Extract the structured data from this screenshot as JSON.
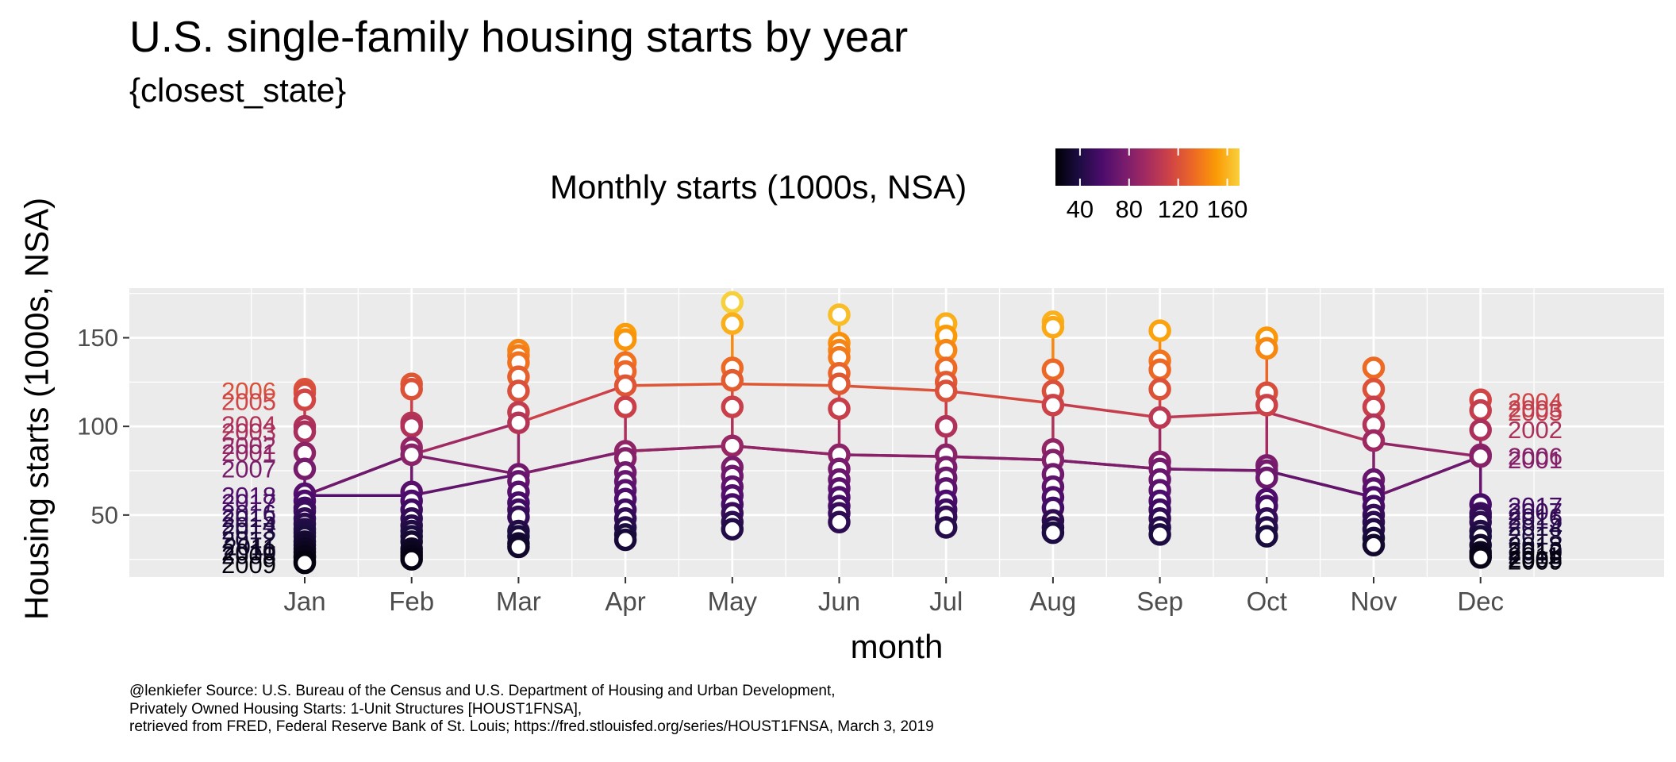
{
  "title": "U.S. single-family housing starts by year",
  "subtitle": "{closest_state}",
  "caption": [
    "@lenkiefer Source: U.S. Bureau of the Census and U.S. Department of Housing and Urban Development,",
    "Privately Owned Housing Starts: 1-Unit Structures [HOUST1FNSA],",
    "retrieved from FRED, Federal Reserve Bank of St. Louis; https://fred.stlouisfed.org/series/HOUST1FNSA, March 3, 2019"
  ],
  "chart_data": {
    "type": "scatter",
    "xlabel": "month",
    "ylabel": "Housing starts (1000s, NSA)",
    "categories": [
      "Jan",
      "Feb",
      "Mar",
      "Apr",
      "May",
      "Jun",
      "Jul",
      "Aug",
      "Sep",
      "Oct",
      "Nov",
      "Dec"
    ],
    "y_ticks": [
      50,
      100,
      150
    ],
    "ylim": [
      15,
      178
    ],
    "grid": true,
    "legend": {
      "title": "Monthly starts (1000s, NSA)",
      "ticks": [
        40,
        80,
        120,
        160
      ],
      "range": [
        20,
        170
      ],
      "placement": "top",
      "colors": [
        "#000004",
        "#1b0c41",
        "#4a0c6b",
        "#781c6d",
        "#a52c60",
        "#cf4446",
        "#ed6925",
        "#fb9b06",
        "#f7d13d"
      ]
    },
    "points_by_month": [
      [
        121,
        119,
        115,
        100,
        97,
        85,
        76,
        62,
        58,
        54,
        52,
        48,
        45,
        42,
        40,
        38,
        35,
        33,
        31,
        29,
        27,
        26,
        24,
        23
      ],
      [
        124,
        121,
        102,
        100,
        88,
        84,
        63,
        58,
        53,
        48,
        44,
        41,
        38,
        35,
        31,
        29,
        27,
        25
      ],
      [
        143,
        140,
        136,
        128,
        120,
        108,
        102,
        73,
        69,
        63,
        57,
        53,
        49,
        41,
        38,
        34,
        32
      ],
      [
        152,
        149,
        136,
        131,
        123,
        111,
        86,
        82,
        74,
        69,
        64,
        59,
        53,
        48,
        43,
        39,
        36
      ],
      [
        170,
        158,
        133,
        126,
        111,
        89,
        77,
        72,
        66,
        61,
        56,
        51,
        46,
        42
      ],
      [
        163,
        147,
        143,
        139,
        130,
        124,
        110,
        84,
        76,
        70,
        65,
        60,
        55,
        51,
        46
      ],
      [
        158,
        151,
        143,
        133,
        125,
        120,
        100,
        84,
        77,
        71,
        65,
        58,
        53,
        49,
        43
      ],
      [
        159,
        156,
        132,
        120,
        112,
        87,
        81,
        73,
        66,
        60,
        54,
        47,
        43,
        40
      ],
      [
        154,
        137,
        132,
        121,
        105,
        80,
        76,
        70,
        64,
        58,
        53,
        48,
        43,
        39
      ],
      [
        150,
        144,
        119,
        112,
        78,
        75,
        71,
        59,
        55,
        48,
        43,
        38
      ],
      [
        133,
        121,
        111,
        101,
        92,
        70,
        65,
        60,
        55,
        50,
        46,
        42,
        37,
        33
      ],
      [
        115,
        109,
        98,
        84,
        83,
        56,
        51,
        49,
        46,
        41,
        38,
        33,
        29,
        27,
        26
      ]
    ],
    "highlight_series": [
      {
        "name": "",
        "values": [
          61,
          84,
          102,
          123,
          124,
          123,
          120,
          113,
          105,
          108,
          91,
          83
        ]
      },
      {
        "name": "",
        "values": [
          61,
          84,
          73,
          86,
          89,
          84,
          83,
          81,
          76,
          75,
          60,
          83
        ]
      },
      {
        "name": "",
        "values": [
          61,
          61,
          73,
          86,
          89,
          84,
          83,
          81,
          76,
          75,
          60,
          83
        ]
      }
    ],
    "labels_left": [
      {
        "text": "2006",
        "y": 120
      },
      {
        "text": "2005",
        "y": 114
      },
      {
        "text": "2004",
        "y": 101
      },
      {
        "text": "2003",
        "y": 97
      },
      {
        "text": "2002",
        "y": 89
      },
      {
        "text": "2001",
        "y": 85
      },
      {
        "text": "2007",
        "y": 76
      },
      {
        "text": "2018",
        "y": 61
      },
      {
        "text": "2017",
        "y": 57
      },
      {
        "text": "2016",
        "y": 51
      },
      {
        "text": "2015",
        "y": 48
      },
      {
        "text": "2014",
        "y": 44
      },
      {
        "text": "2013",
        "y": 41
      },
      {
        "text": "2012",
        "y": 36
      },
      {
        "text": "2011",
        "y": 32
      },
      {
        "text": "2010",
        "y": 29
      },
      {
        "text": "2008",
        "y": 27
      },
      {
        "text": "2009",
        "y": 22
      }
    ],
    "labels_right": [
      {
        "text": "2004",
        "y": 114
      },
      {
        "text": "2003",
        "y": 110
      },
      {
        "text": "2005",
        "y": 108
      },
      {
        "text": "2002",
        "y": 98
      },
      {
        "text": "2006",
        "y": 83
      },
      {
        "text": "2001",
        "y": 81
      },
      {
        "text": "2017",
        "y": 55
      },
      {
        "text": "2007",
        "y": 52
      },
      {
        "text": "2016",
        "y": 49
      },
      {
        "text": "2015",
        "y": 47
      },
      {
        "text": "2014",
        "y": 43
      },
      {
        "text": "2018",
        "y": 38
      },
      {
        "text": "2013",
        "y": 33
      },
      {
        "text": "2012",
        "y": 30
      },
      {
        "text": "2010",
        "y": 29
      },
      {
        "text": "2011",
        "y": 27
      },
      {
        "text": "2008",
        "y": 25
      },
      {
        "text": "2009",
        "y": 24
      }
    ]
  }
}
